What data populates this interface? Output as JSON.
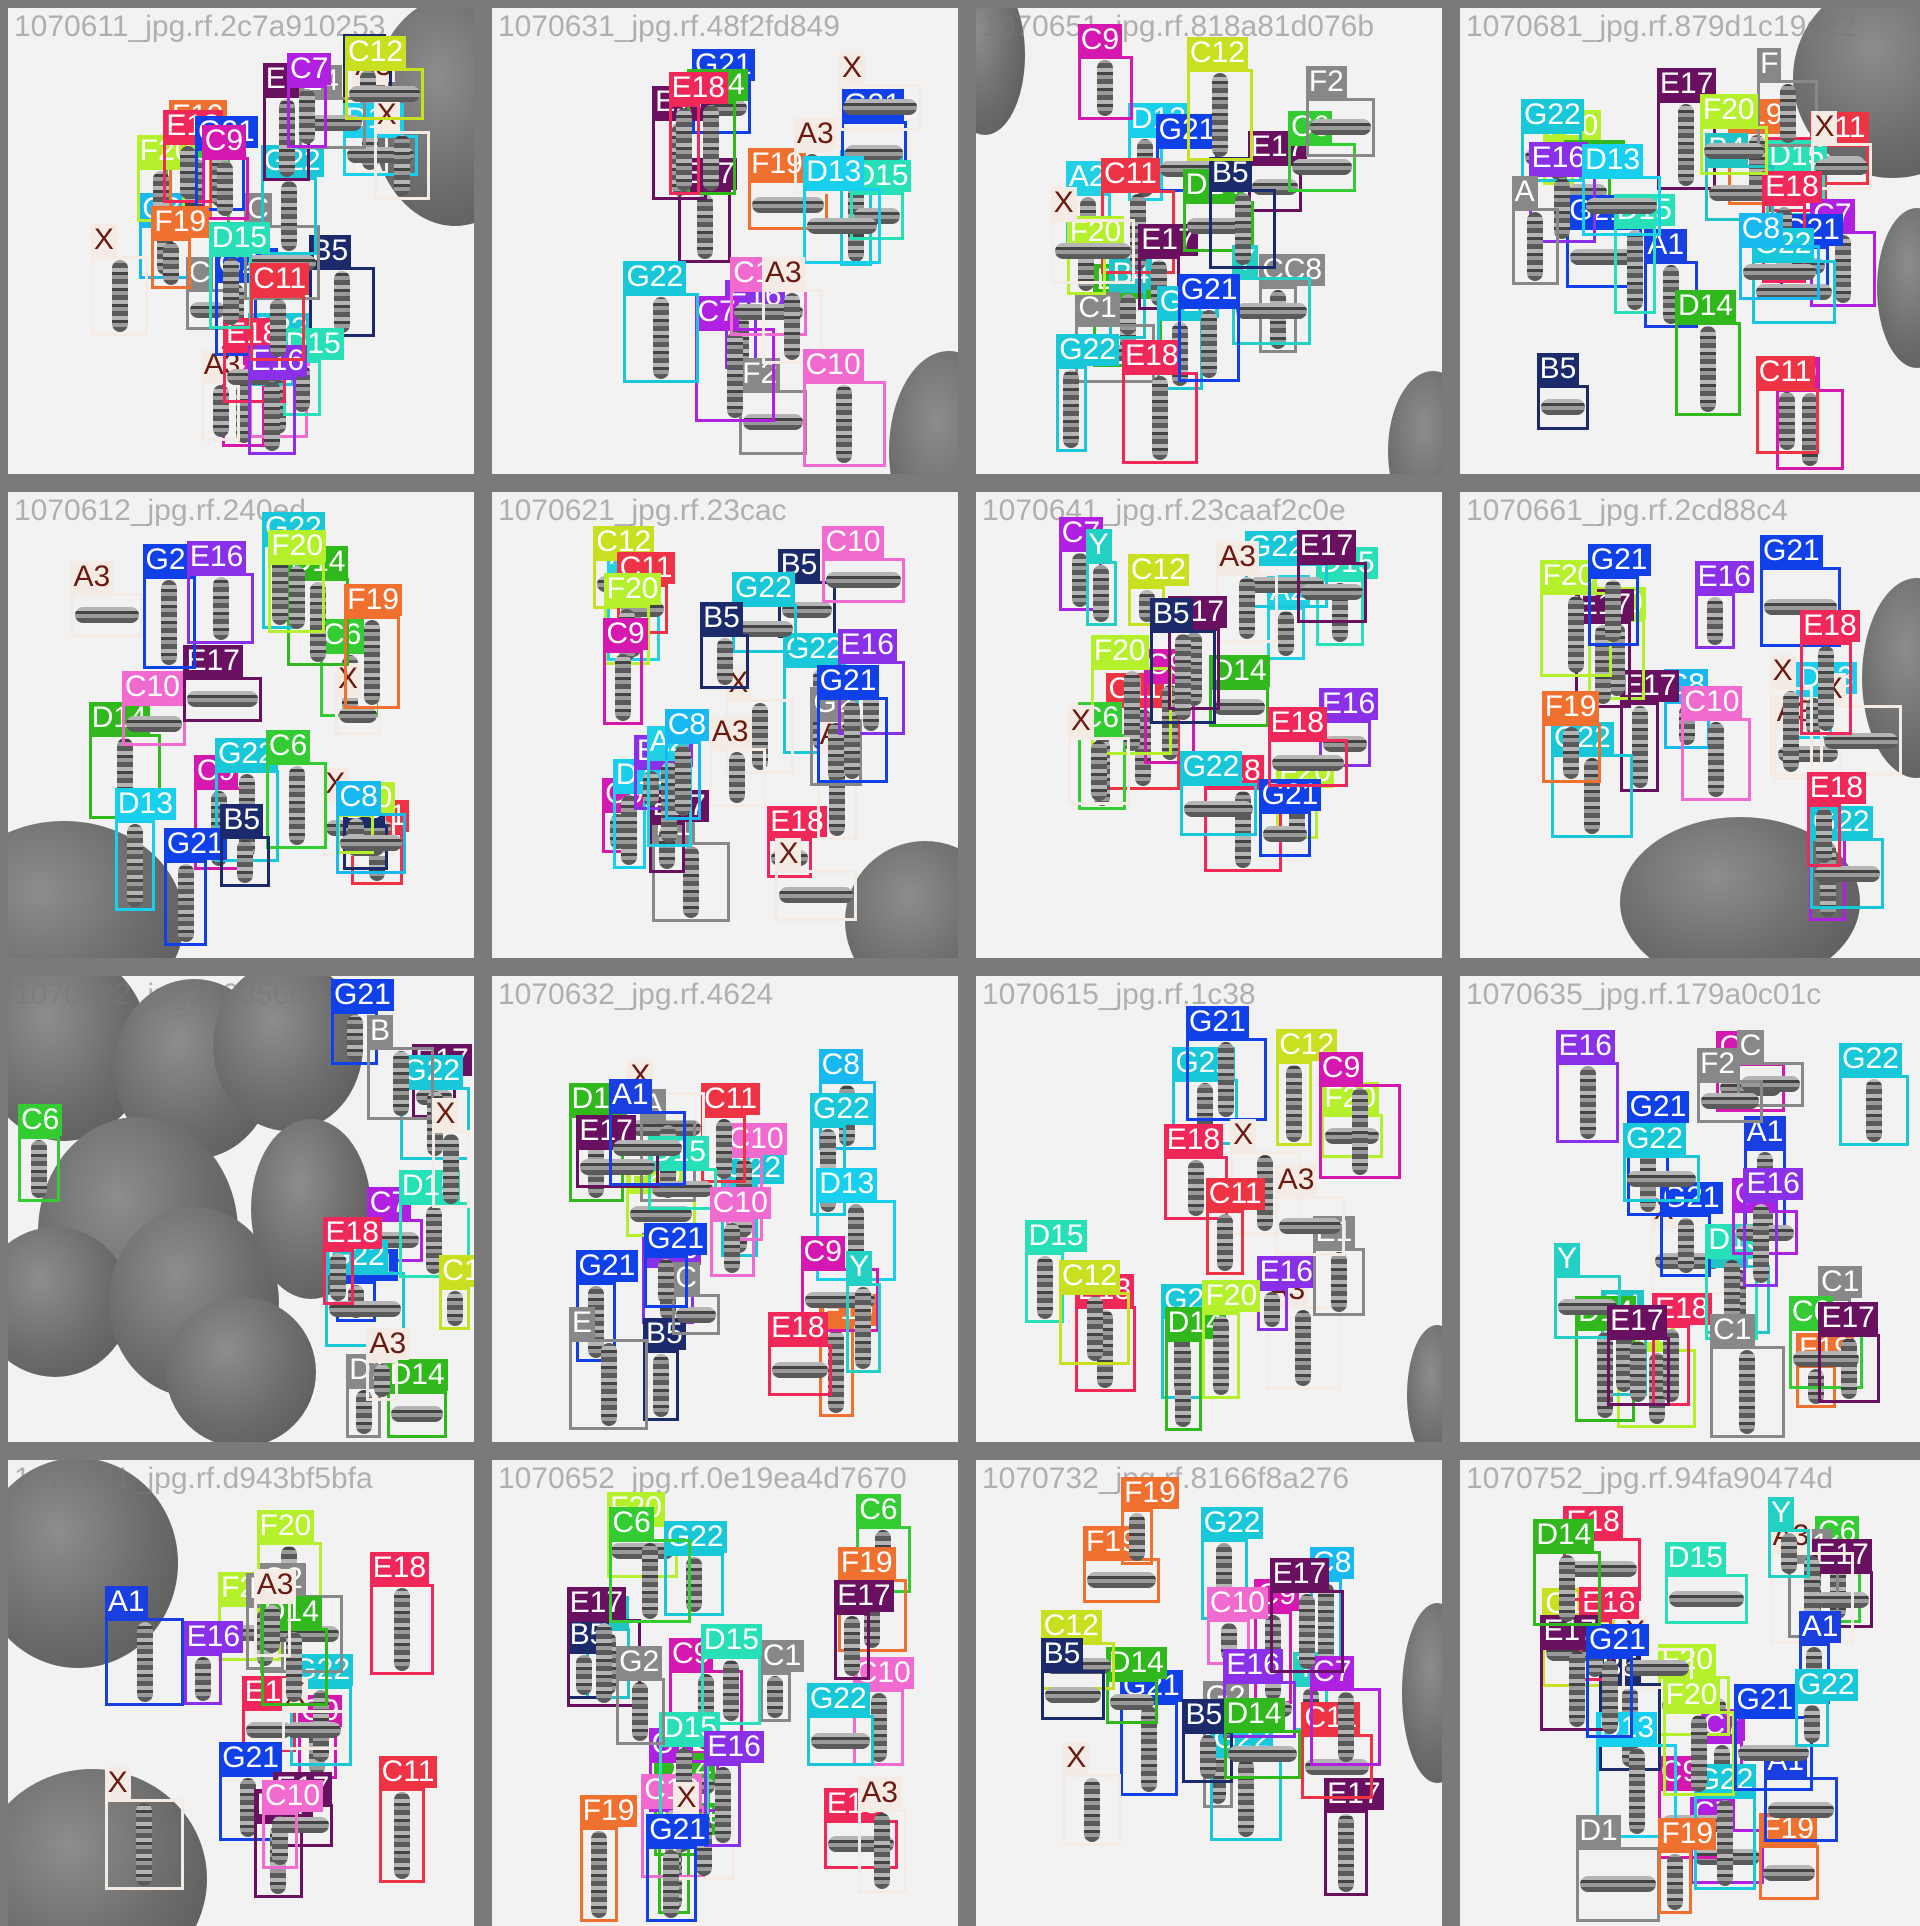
{
  "colors": {
    "A1": "#1a3fe0",
    "A2": "#22d0e6",
    "A3": "#f4ece4",
    "B4": "#20c4c4",
    "B5": "#1b2a6b",
    "C6": "#33cc33",
    "C7": "#b020e0",
    "C8": "#18b8f0",
    "C9": "#d418b0",
    "C10": "#f06ad0",
    "C11": "#ee3344",
    "C12": "#c8e020",
    "D13": "#18d0ee",
    "D14": "#30b81c",
    "D15": "#28e0b8",
    "E16": "#8a30e8",
    "E17": "#6a1060",
    "E18": "#f0285a",
    "F19": "#f07030",
    "F20": "#b4f02c",
    "G21": "#1040e8",
    "G22": "#18c8d8",
    "X": "#f4ece4",
    "Y": "#22d0c4"
  },
  "tiles": [
    {
      "filename": "1070611_jpg.rf.2c7a910253",
      "labels": [
        "C9",
        "A3",
        "C6",
        "C8",
        "C10",
        "B5",
        "G22",
        "F19",
        "C",
        "A3",
        "G21",
        "B5",
        "D15",
        "F20",
        "E18",
        "C",
        "E18",
        "D13",
        "E16",
        "G22",
        "D15",
        "X",
        "G21",
        "E17",
        "C11",
        "C9",
        "E4",
        "F19",
        "C7",
        "X",
        "C12"
      ]
    },
    {
      "filename": "1070631_jpg.rf.48f2fd849",
      "labels": [
        "E16",
        "E17",
        "F19",
        "G21",
        "E17",
        "D14",
        "F2",
        "G22",
        "G21",
        "D15",
        "C7",
        "A3",
        "G22",
        "D13",
        "C10",
        "X",
        "A3",
        "E18",
        "C10"
      ]
    },
    {
      "filename": "1070651_jpg.rf.818a81d076b",
      "labels": [
        "D14",
        "D13",
        "A2",
        "E17",
        "G21",
        "B4",
        "C11",
        "CC8",
        "C1",
        "E17",
        "D14",
        "G22",
        "C9",
        "E18",
        "Y",
        "F20",
        "C6",
        "G21",
        "B5",
        "C12",
        "G22",
        "F2",
        "X"
      ]
    },
    {
      "filename": "1070681_jpg.rf.879d1c19de2",
      "labels": [
        "F19",
        "E17",
        "E18",
        "F20",
        "C9",
        "C11",
        "D15",
        "B4",
        "F",
        "X",
        "A1",
        "C7",
        "G22",
        "C11",
        "D14",
        "B5",
        "G21",
        "E18",
        "F20",
        "G21",
        "G22",
        "C8",
        "D15",
        "E16",
        "A",
        "D13",
        "D14"
      ]
    },
    {
      "filename": "1070612_jpg.rf.240ed",
      "labels": [
        "C9",
        "D14",
        "C6",
        "C10",
        "G22",
        "C11",
        "X",
        "D14",
        "X",
        "D13",
        "G21",
        "G22",
        "A3",
        "E17",
        "F19",
        "B5",
        "G21",
        "C6",
        "B5",
        "E16",
        "F20",
        "C8",
        "F20"
      ]
    },
    {
      "filename": "1070621_jpg.rf.23cac",
      "labels": [
        "C9",
        "B5",
        "A2",
        "D13",
        "E18",
        "C12",
        "C11",
        "C10",
        "E1",
        "F20",
        "G22",
        "A3",
        "E17",
        "G22",
        "X",
        "G2",
        "A3",
        "B5",
        "E16",
        "C9",
        "G21",
        "X",
        "E16",
        "A2",
        "C8"
      ]
    },
    {
      "filename": "1070641_jpg.rf.23caaf2c0e",
      "labels": [
        "C11",
        "E18",
        "C6",
        "C7",
        "C9",
        "A2",
        "D15",
        "F20",
        "C12",
        "F20",
        "G21",
        "Y",
        "G22",
        "D14",
        "A3",
        "E17",
        "G22",
        "E16",
        "E18",
        "X",
        "E17",
        "B5"
      ]
    },
    {
      "filename": "1070661_jpg.rf.2cd88c4",
      "labels": [
        "A3",
        "C8",
        "D13",
        "C7",
        "E17",
        "X",
        "F20",
        "X",
        "E17",
        "G22",
        "F20",
        "G22",
        "G21",
        "F19",
        "E16",
        "E18",
        "C10",
        "E18",
        "G21"
      ]
    },
    {
      "filename": "1070622_jpg.rf.935660",
      "labels": [
        "C7",
        "D1",
        "E17",
        "G21",
        "G22",
        "G21",
        "G22",
        "C6",
        "B",
        "D15",
        "D14",
        "E18",
        "X",
        "C12",
        "A3"
      ]
    },
    {
      "filename": "1070632_jpg.rf.4624",
      "labels": [
        "E16",
        "G22",
        "B5",
        "C8",
        "C10",
        "F20",
        "G21",
        "D14",
        "C11",
        "F19",
        "X",
        "A",
        "C",
        "G22",
        "D15",
        "D13",
        "E",
        "G21",
        "E17",
        "C9",
        "A1",
        "E18",
        "Y",
        "C10"
      ]
    },
    {
      "filename": "1070615_jpg.rf.1c38",
      "labels": [
        "C12",
        "G22",
        "A3",
        "D15",
        "G22",
        "D14",
        "E16",
        "E18",
        "C12",
        "F20",
        "E18",
        "E1",
        "G21",
        "X",
        "C9",
        "A3",
        "F20",
        "C11"
      ]
    },
    {
      "filename": "1070635_jpg.rf.179a0c01c",
      "labels": [
        "X",
        "C1",
        "F19",
        "F20",
        "B4",
        "A1",
        "B4",
        "E18",
        "G21",
        "E16",
        "C6",
        "G21",
        "D14",
        "C9",
        "D15",
        "C",
        "G22",
        "E17",
        "G22",
        "C1",
        "F2",
        "Y",
        "E17",
        "C7",
        "E16"
      ]
    },
    {
      "filename": "1070641_jpg.rf.d943bf5bfa",
      "labels": [
        "F20",
        "E18",
        "C9",
        "G21",
        "E17",
        "G22",
        "F20",
        "X",
        "X",
        "A1",
        "E1",
        "G2",
        "D14",
        "E18",
        "C11",
        "E17",
        "A3",
        "E16",
        "C10"
      ]
    },
    {
      "filename": "1070652_jpg.rf.0e19ea4d7670",
      "labels": [
        "B4",
        "D14",
        "C6",
        "E18",
        "A3",
        "C9",
        "D14",
        "C7",
        "B5",
        "C1",
        "D15",
        "E17",
        "C10",
        "D15",
        "C10",
        "X",
        "F19",
        "F20",
        "G22",
        "E16",
        "F19",
        "E17",
        "G2",
        "G22",
        "G21",
        "C6"
      ]
    },
    {
      "filename": "1070732_jpg.rf.8166f8a276",
      "labels": [
        "C9",
        "F19",
        "G21",
        "D14",
        "E17",
        "F19",
        "G22",
        "Y",
        "C8",
        "C12",
        "C10",
        "X",
        "G2",
        "C11",
        "G22",
        "E16",
        "C7",
        "B5",
        "E17",
        "D14",
        "B5"
      ]
    },
    {
      "filename": "1070752_jpg.rf.94fa90474d",
      "labels": [
        "C7",
        "C9",
        "C6",
        "F19",
        "C12",
        "C7",
        "F20",
        "B5",
        "G22",
        "D15",
        "D13",
        "C1",
        "X",
        "E17",
        "A1",
        "E18",
        "A3",
        "D1",
        "F20",
        "E17",
        "Y",
        "G21",
        "E18",
        "A1",
        "D14",
        "G21",
        "G22",
        "F19"
      ]
    }
  ]
}
